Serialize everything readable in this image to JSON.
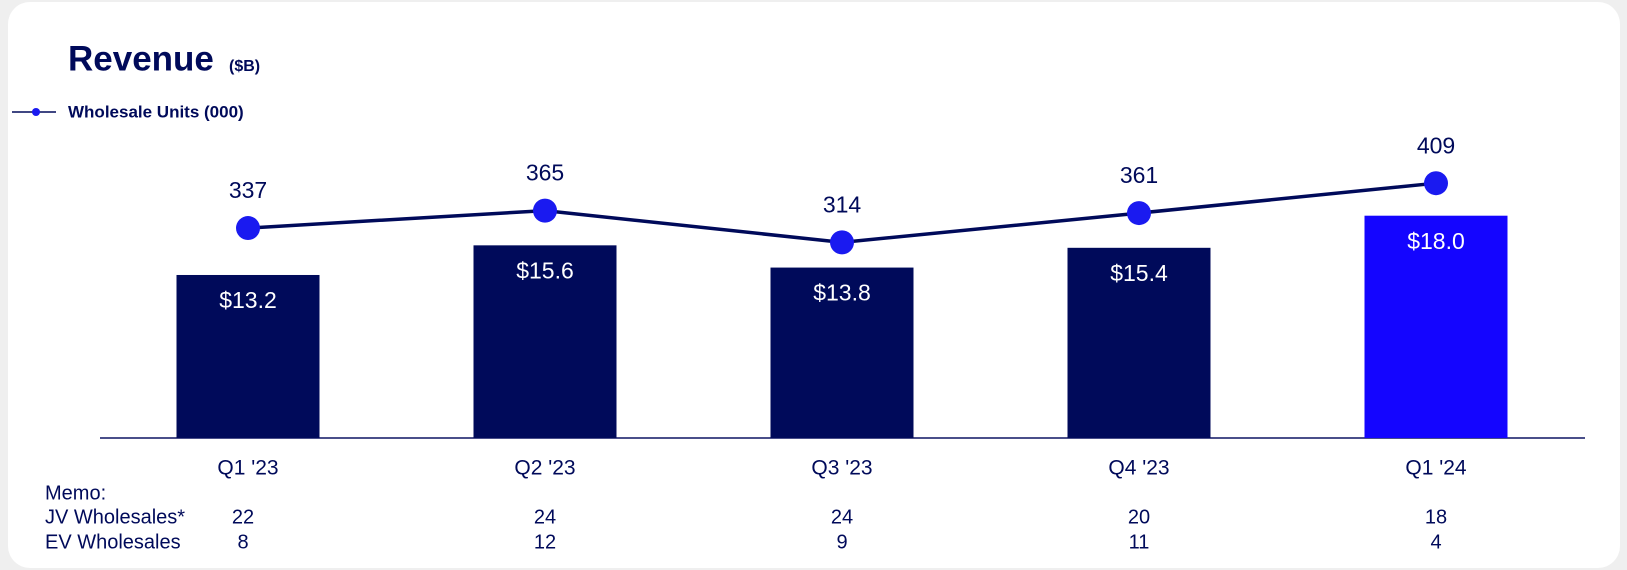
{
  "chart_data": {
    "type": "bar",
    "title": "Revenue",
    "subtitle": "($B)",
    "categories": [
      "Q1 '23",
      "Q2 '23",
      "Q3 '23",
      "Q4 '23",
      "Q1 '24"
    ],
    "values": [
      13.2,
      15.6,
      13.8,
      15.4,
      18.0
    ],
    "value_labels": [
      "$13.2",
      "$15.6",
      "$13.8",
      "$15.4",
      "$18.0"
    ],
    "colors": [
      "#000a5a",
      "#000a5a",
      "#000a5a",
      "#000a5a",
      "#1405ff"
    ],
    "line_series": {
      "type": "line",
      "name": "Wholesale Units (000)",
      "color": "#000a5a",
      "marker_color": "#1a1af0",
      "values": [
        337,
        365,
        314,
        361,
        409
      ]
    },
    "memo": {
      "title": "Memo:",
      "rows": [
        {
          "label": "JV Wholesales*",
          "values": [
            22,
            24,
            24,
            20,
            18
          ]
        },
        {
          "label": "EV Wholesales",
          "values": [
            8,
            12,
            9,
            11,
            4
          ]
        }
      ]
    }
  }
}
